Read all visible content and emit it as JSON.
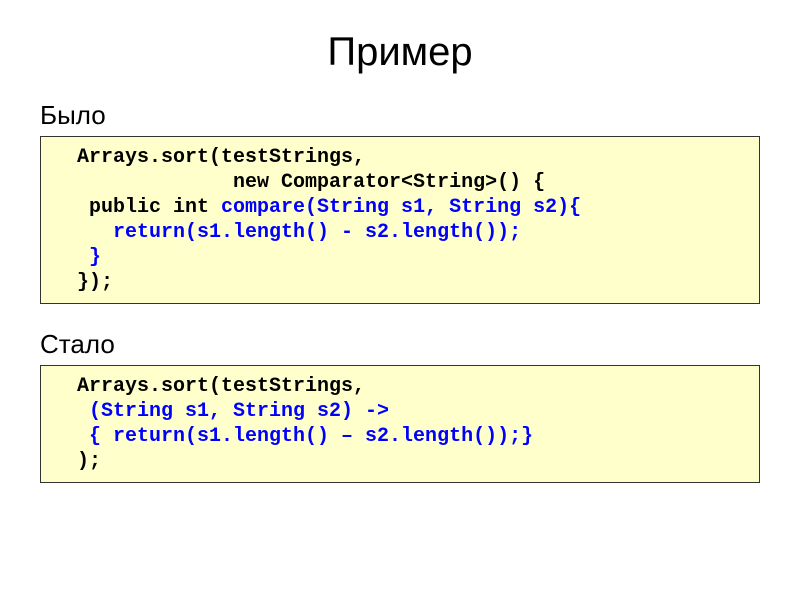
{
  "title": "Пример",
  "section1": {
    "label": "Было",
    "code": {
      "line1": "  Arrays.sort(testStrings,",
      "line2": "               new Comparator<String>() {",
      "line3_a": "   public int ",
      "line3_b": "compare(String s1, String s2){",
      "line4": "     return(s1.length() - s2.length());",
      "line5": "   }",
      "line6": "  });"
    }
  },
  "section2": {
    "label": "Стало",
    "code": {
      "line1": "  Arrays.sort(testStrings,",
      "line2": "   (String s1, String s2) ->",
      "line3": "   { return(s1.length() – s2.length());}",
      "line4": "  );"
    }
  },
  "styles": {
    "code_background": "#ffffcc",
    "code_border": "#333333",
    "text_color_black": "#000000",
    "text_color_blue": "#0000ff",
    "font_family_code": "Courier New",
    "font_family_body": "Arial",
    "title_fontsize": 40,
    "label_fontsize": 26,
    "code_fontsize": 20
  }
}
